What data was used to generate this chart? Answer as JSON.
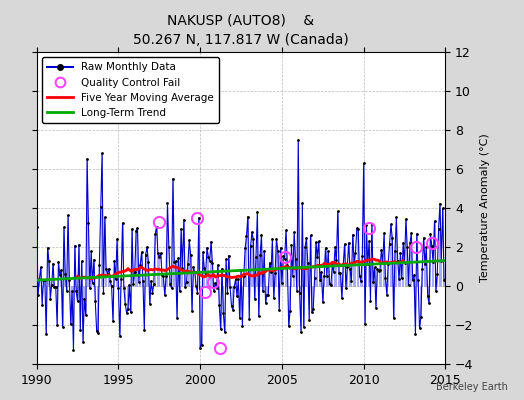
{
  "title": "NAKUSP (AUTO8)    &",
  "subtitle": "50.267 N, 117.817 W (Canada)",
  "ylabel": "Temperature Anomaly (°C)",
  "watermark": "Berkeley Earth",
  "xlim": [
    1990,
    2015
  ],
  "ylim": [
    -4,
    12
  ],
  "yticks": [
    -4,
    -2,
    0,
    2,
    4,
    6,
    8,
    10,
    12
  ],
  "xticks": [
    1990,
    1995,
    2000,
    2005,
    2010,
    2015
  ],
  "fig_bg": "#d8d8d8",
  "plot_bg": "#ffffff",
  "raw_color": "#0000cc",
  "bar_color": "#8888ff",
  "ma_color": "#ff0000",
  "trend_color": "#00aa00",
  "qc_color": "#ff44ff",
  "seed": 7
}
